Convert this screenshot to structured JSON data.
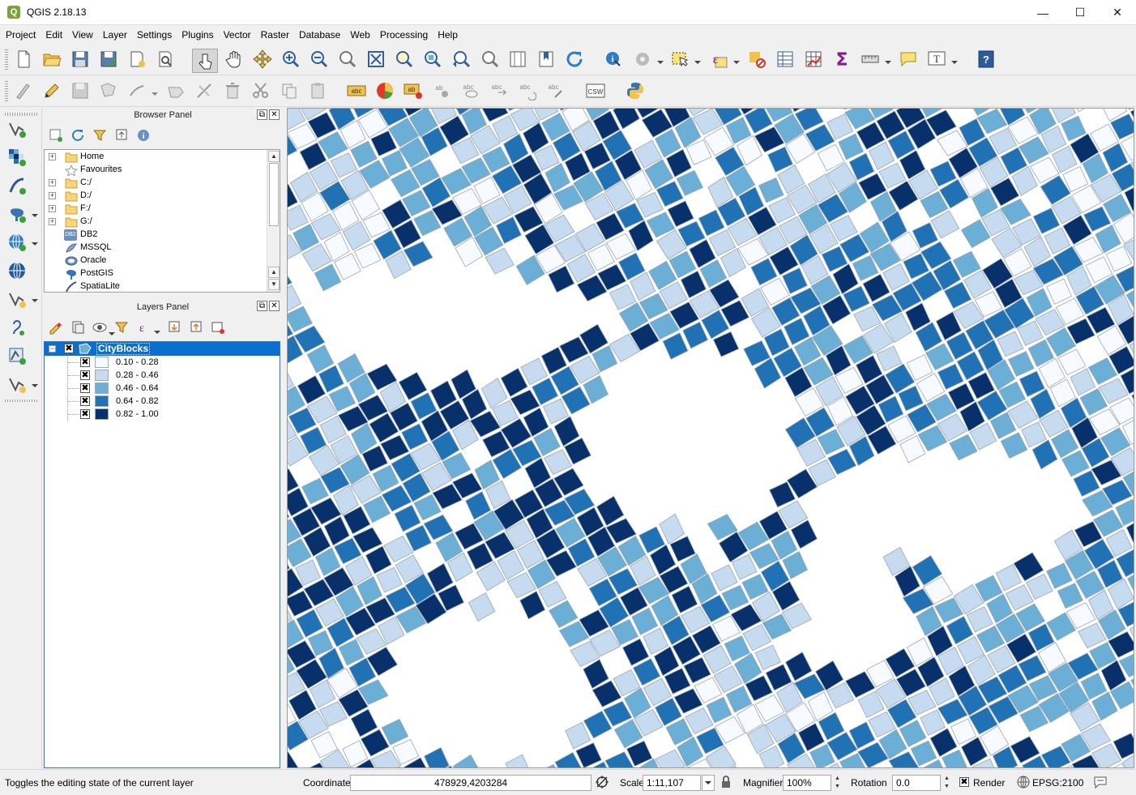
{
  "window": {
    "title": "QGIS 2.18.13",
    "minimize": "—",
    "maximize": "☐",
    "close": "✕"
  },
  "menu": [
    "Project",
    "Edit",
    "View",
    "Layer",
    "Settings",
    "Plugins",
    "Vector",
    "Raster",
    "Database",
    "Web",
    "Processing",
    "Help"
  ],
  "browser_panel": {
    "title": "Browser Panel",
    "items": [
      {
        "label": "Home",
        "icon": "folder-icon",
        "expandable": true
      },
      {
        "label": "Favourites",
        "icon": "star-icon",
        "expandable": false
      },
      {
        "label": "C:/",
        "icon": "folder-icon",
        "expandable": true
      },
      {
        "label": "D:/",
        "icon": "folder-icon",
        "expandable": true
      },
      {
        "label": "F:/",
        "icon": "folder-icon",
        "expandable": true
      },
      {
        "label": "G:/",
        "icon": "folder-icon",
        "expandable": true
      },
      {
        "label": "DB2",
        "icon": "db2-icon",
        "expandable": false
      },
      {
        "label": "MSSQL",
        "icon": "mssql-icon",
        "expandable": false
      },
      {
        "label": "Oracle",
        "icon": "oracle-icon",
        "expandable": false
      },
      {
        "label": "PostGIS",
        "icon": "postgis-icon",
        "expandable": false
      },
      {
        "label": "SpatiaLite",
        "icon": "spatialite-icon",
        "expandable": false
      }
    ],
    "db2_badge": "DB2"
  },
  "layers_panel": {
    "title": "Layers Panel",
    "layer": {
      "name": "CityBlocks",
      "visible": true,
      "expanded": true
    },
    "classes": [
      {
        "label": "0.10 - 0.28",
        "color": "#f7fbff",
        "checked": true
      },
      {
        "label": "0.28 - 0.46",
        "color": "#c6dbef",
        "checked": true
      },
      {
        "label": "0.46 - 0.64",
        "color": "#6baed6",
        "checked": true
      },
      {
        "label": "0.64 - 0.82",
        "color": "#2171b5",
        "checked": true
      },
      {
        "label": "0.82 - 1.00",
        "color": "#08306b",
        "checked": true
      }
    ]
  },
  "status": {
    "message": "Toggles the editing state of the current layer",
    "coordinate_label": "Coordinate",
    "coordinate_value": "478929,4203284",
    "scale_label": "Scale",
    "scale_value": "1:11,107",
    "magnifier_label": "Magnifier",
    "magnifier_value": "100%",
    "rotation_label": "Rotation",
    "rotation_value": "0.0",
    "render_label": "Render",
    "render_checked": true,
    "crs": "EPSG:2100"
  },
  "toolbar": {
    "csw_label": "CSW",
    "label_tool_text": "abc",
    "text_annotation_text": "T"
  },
  "check_mark": "✖",
  "colors": {
    "accent": "#0b6fcf",
    "ramp": [
      "#f7fbff",
      "#c6dbef",
      "#6baed6",
      "#2171b5",
      "#08306b"
    ]
  }
}
